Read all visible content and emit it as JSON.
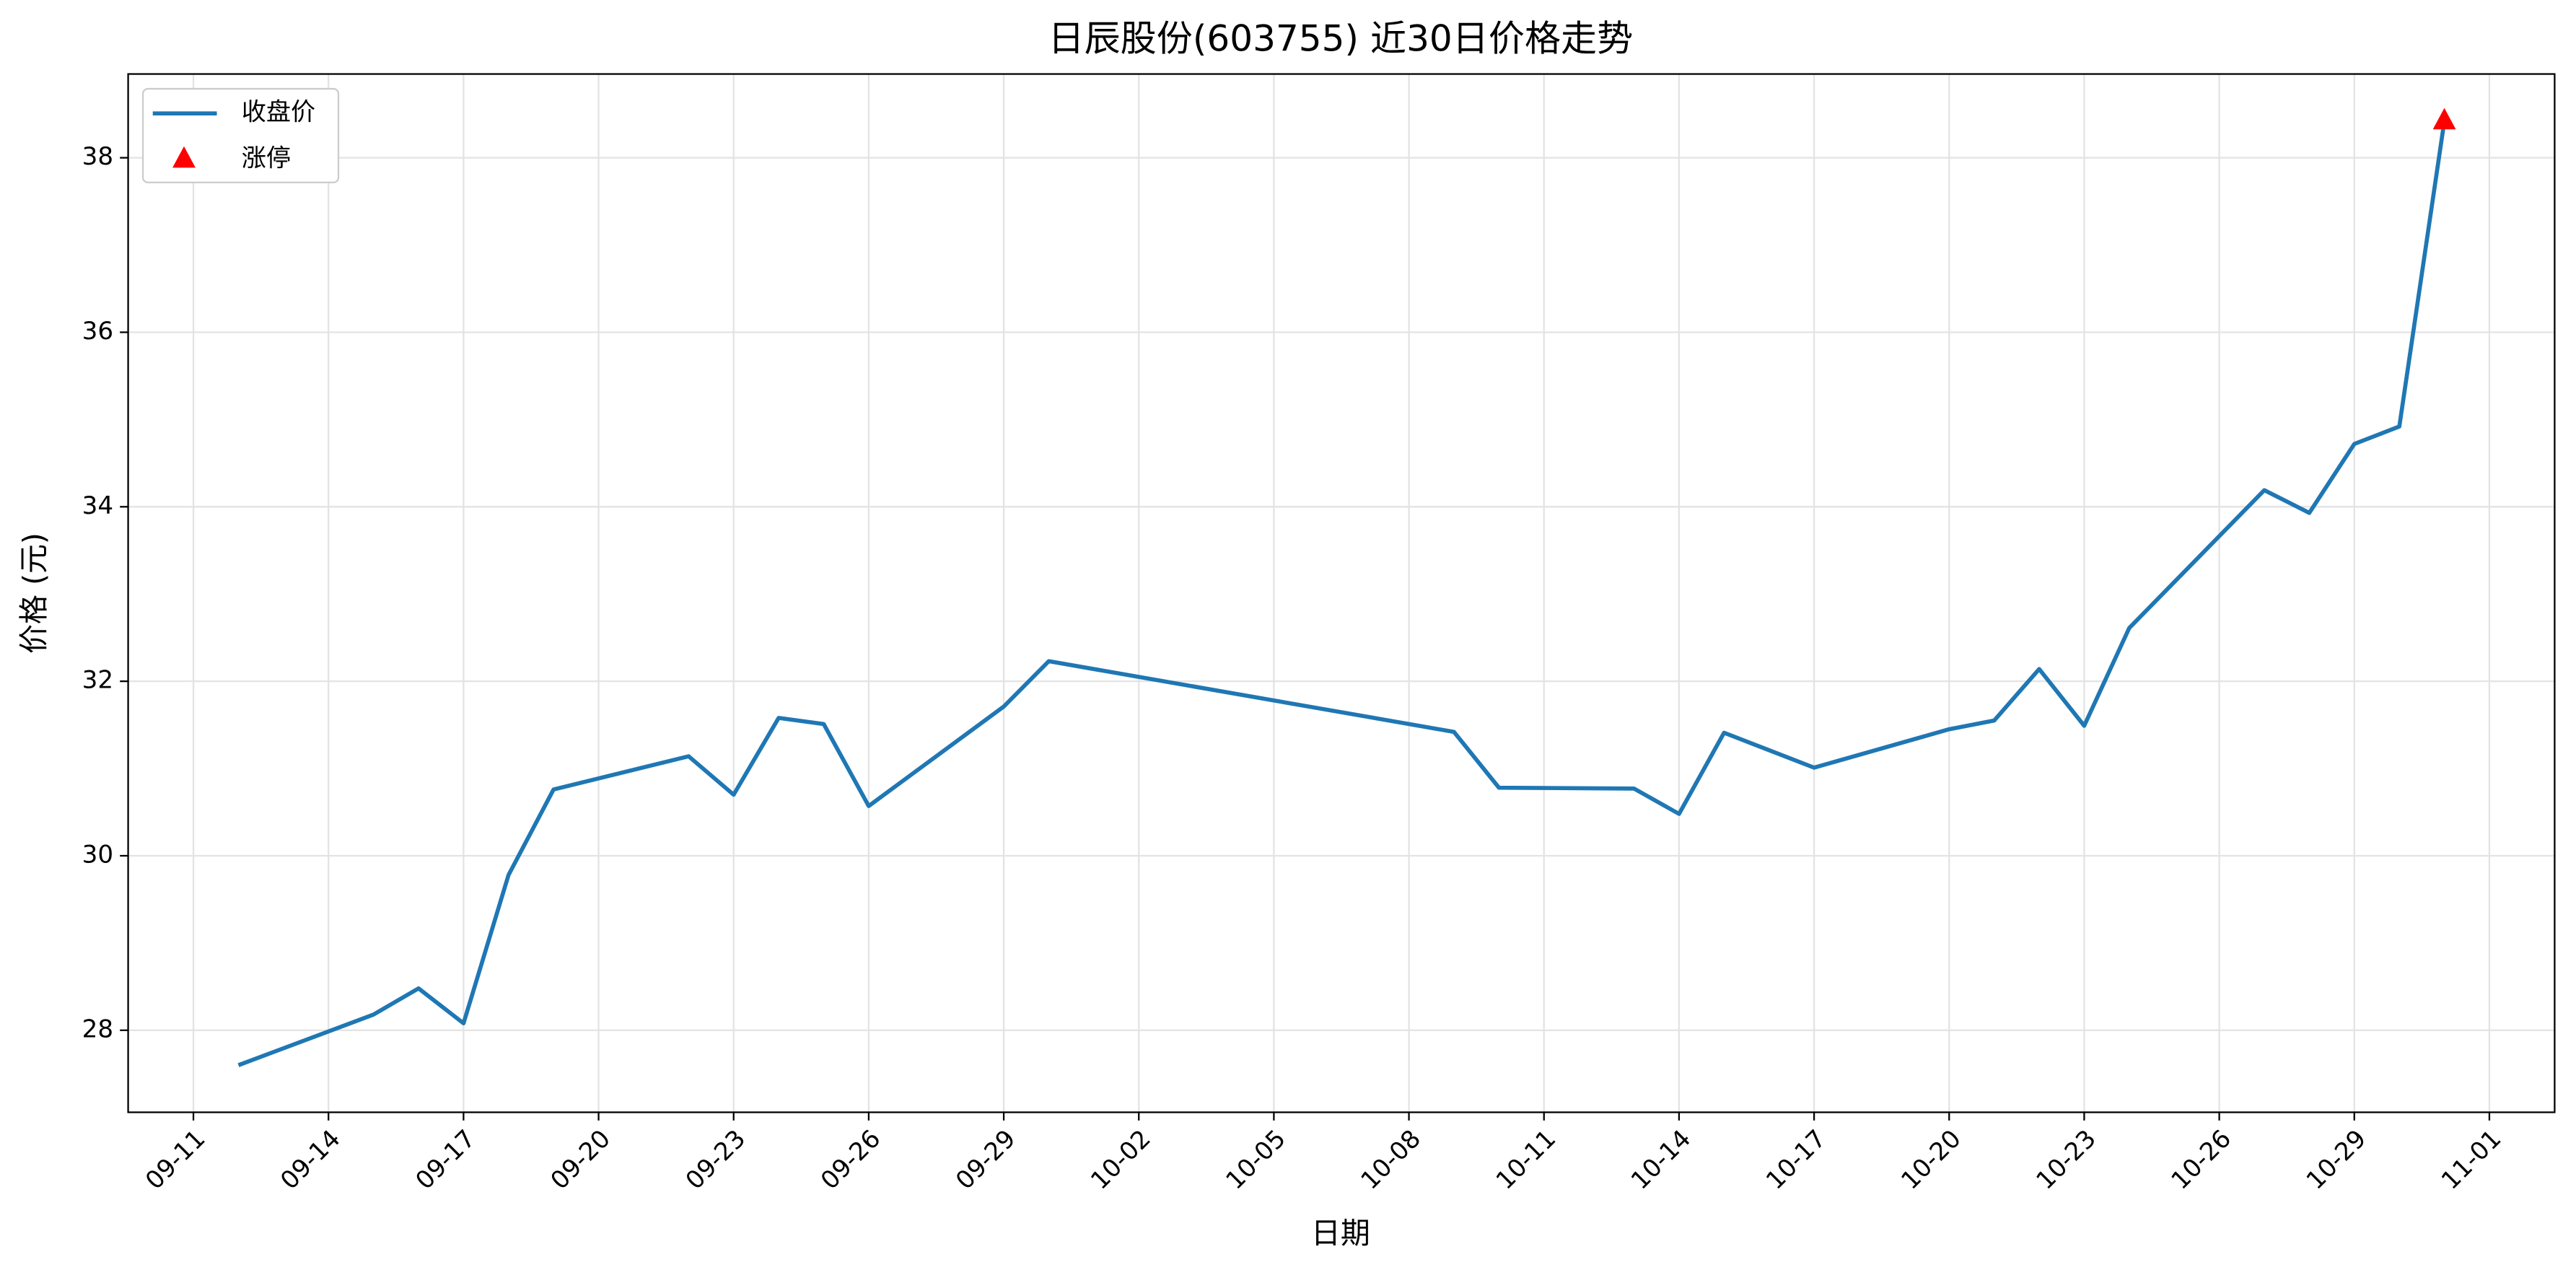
{
  "chart_data": {
    "type": "line",
    "title": "日辰股份(603755) 近30日价格走势",
    "x_label": "日期",
    "y_label": "价格 (元)",
    "x": [
      "09-12",
      "09-15",
      "09-16",
      "09-17",
      "09-18",
      "09-19",
      "09-22",
      "09-23",
      "09-24",
      "09-25",
      "09-26",
      "09-29",
      "09-30",
      "10-09",
      "10-10",
      "10-13",
      "10-14",
      "10-15",
      "10-16",
      "10-17",
      "10-20",
      "10-21",
      "10-22",
      "10-23",
      "10-24",
      "10-27",
      "10-28",
      "10-29",
      "10-30",
      "10-31"
    ],
    "series": [
      {
        "name": "收盘价",
        "color": "#1f77b4",
        "values": [
          27.6,
          28.18,
          28.48,
          28.08,
          29.78,
          30.76,
          31.14,
          30.7,
          31.58,
          31.51,
          30.57,
          31.71,
          32.23,
          31.42,
          30.78,
          30.77,
          30.48,
          31.41,
          31.21,
          31.01,
          31.45,
          31.55,
          32.14,
          31.49,
          32.61,
          34.19,
          33.93,
          34.72,
          34.92,
          38.42
        ]
      },
      {
        "name": "涨停",
        "type": "scatter",
        "marker": "triangle",
        "color": "#ff0000",
        "x": [
          "10-31"
        ],
        "values": [
          38.42
        ]
      }
    ],
    "xticks": [
      "09-11",
      "09-14",
      "09-17",
      "09-20",
      "09-23",
      "09-26",
      "09-29",
      "10-02",
      "10-05",
      "10-08",
      "10-11",
      "10-14",
      "10-17",
      "10-20",
      "10-23",
      "10-26",
      "10-29",
      "11-01"
    ],
    "ylim": [
      27.06,
      38.96
    ],
    "yticks": [
      28,
      30,
      32,
      34,
      36,
      38
    ],
    "grid": true,
    "legend": "upper-left"
  }
}
